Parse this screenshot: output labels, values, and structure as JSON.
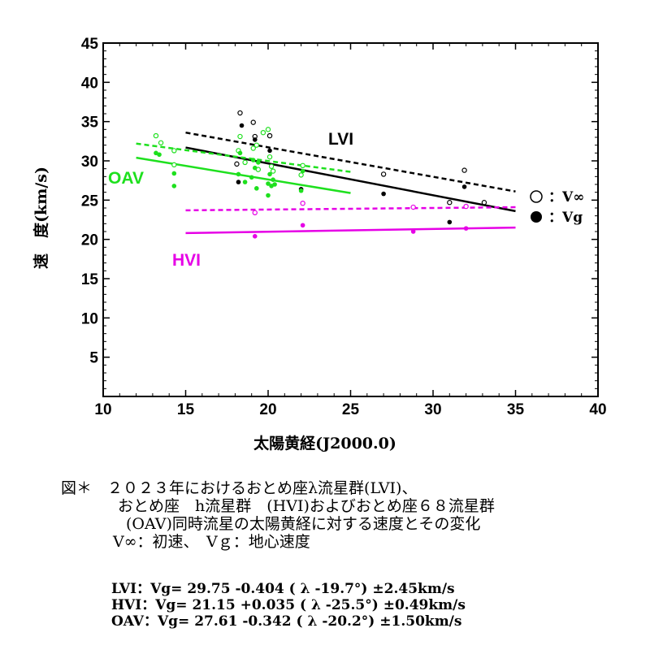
{
  "chart_data": {
    "type": "scatter",
    "xlabel": "太陽黄経(J2000.0)",
    "ylabel": "速　度(km/s)",
    "xlim": [
      10,
      40
    ],
    "ylim": [
      0,
      45
    ],
    "xticks": [
      10,
      15,
      20,
      25,
      30,
      35,
      40
    ],
    "yticks": [
      5,
      10,
      15,
      20,
      25,
      30,
      35,
      40,
      45
    ],
    "grid": false,
    "colors": {
      "LVI": "#000000",
      "HVI": "#e600e6",
      "OAV": "#1ee01e"
    },
    "series_labels": {
      "LVI": "LVI",
      "HVI": "HVI",
      "OAV": "OAV"
    },
    "series": [
      {
        "name": "LVI",
        "kind": "V∞ (open)",
        "color": "#000000",
        "points": [
          [
            18.3,
            36.1
          ],
          [
            19.1,
            34.9
          ],
          [
            19.2,
            33.1
          ],
          [
            20.1,
            33.2
          ],
          [
            18.1,
            29.6
          ],
          [
            27.0,
            28.3
          ],
          [
            31.9,
            28.8
          ],
          [
            31.0,
            24.7
          ],
          [
            33.1,
            24.7
          ]
        ]
      },
      {
        "name": "LVI",
        "kind": "Vg (filled)",
        "color": "#000000",
        "points": [
          [
            18.4,
            34.5
          ],
          [
            19.2,
            32.7
          ],
          [
            20.1,
            31.3
          ],
          [
            18.2,
            27.3
          ],
          [
            22.0,
            26.4
          ],
          [
            27.0,
            25.8
          ],
          [
            31.0,
            22.2
          ],
          [
            31.9,
            26.7
          ]
        ]
      },
      {
        "name": "HVI",
        "kind": "V∞ (open)",
        "color": "#e600e6",
        "points": [
          [
            19.2,
            23.4
          ],
          [
            22.1,
            24.6
          ],
          [
            28.8,
            24.1
          ],
          [
            32.0,
            24.2
          ]
        ]
      },
      {
        "name": "HVI",
        "kind": "Vg (filled)",
        "color": "#e600e6",
        "points": [
          [
            19.2,
            20.4
          ],
          [
            22.1,
            21.8
          ],
          [
            28.8,
            21.0
          ],
          [
            32.0,
            21.4
          ]
        ]
      },
      {
        "name": "OAV",
        "kind": "V∞ (open)",
        "color": "#1ee01e",
        "points": [
          [
            13.2,
            33.2
          ],
          [
            13.5,
            32.3
          ],
          [
            14.3,
            31.3
          ],
          [
            14.3,
            29.5
          ],
          [
            18.2,
            31.3
          ],
          [
            18.3,
            33.1
          ],
          [
            18.6,
            29.8
          ],
          [
            19.1,
            31.6
          ],
          [
            19.3,
            32.0
          ],
          [
            19.4,
            28.9
          ],
          [
            19.7,
            33.6
          ],
          [
            20.0,
            34.0
          ],
          [
            20.1,
            30.5
          ],
          [
            20.2,
            29.3
          ],
          [
            20.3,
            28.7
          ],
          [
            22.0,
            28.2
          ],
          [
            22.1,
            29.4
          ]
        ]
      },
      {
        "name": "OAV",
        "kind": "Vg (filled)",
        "color": "#1ee01e",
        "points": [
          [
            13.2,
            31.0
          ],
          [
            13.4,
            30.8
          ],
          [
            14.3,
            28.4
          ],
          [
            14.3,
            26.8
          ],
          [
            18.2,
            28.3
          ],
          [
            18.3,
            31.0
          ],
          [
            18.6,
            27.3
          ],
          [
            19.0,
            27.9
          ],
          [
            19.1,
            30.1
          ],
          [
            19.2,
            29.1
          ],
          [
            19.3,
            26.5
          ],
          [
            19.4,
            29.8
          ],
          [
            20.0,
            25.6
          ],
          [
            20.0,
            27.1
          ],
          [
            20.1,
            28.3
          ],
          [
            20.2,
            26.8
          ],
          [
            20.3,
            27.6
          ],
          [
            20.4,
            27.0
          ],
          [
            22.0,
            26.2
          ],
          [
            22.1,
            28.7
          ]
        ]
      }
    ],
    "fits": [
      {
        "name": "LVI",
        "color": "#000000",
        "style": "dashed",
        "x": [
          15,
          35
        ],
        "y": [
          33.6,
          26.1
        ]
      },
      {
        "name": "LVI",
        "color": "#000000",
        "style": "solid",
        "x": [
          15,
          35
        ],
        "y": [
          31.7,
          23.6
        ]
      },
      {
        "name": "HVI",
        "color": "#e600e6",
        "style": "dashed",
        "x": [
          15,
          35
        ],
        "y": [
          23.7,
          24.1
        ]
      },
      {
        "name": "HVI",
        "color": "#e600e6",
        "style": "solid",
        "x": [
          15,
          35
        ],
        "y": [
          20.8,
          21.5
        ]
      },
      {
        "name": "OAV",
        "color": "#1ee01e",
        "style": "dashed",
        "x": [
          12,
          25
        ],
        "y": [
          32.2,
          28.6
        ]
      },
      {
        "name": "OAV",
        "color": "#1ee01e",
        "style": "solid",
        "x": [
          12,
          25
        ],
        "y": [
          30.4,
          25.9
        ]
      }
    ],
    "legend": [
      {
        "marker": "open",
        "label": "：V∞"
      },
      {
        "marker": "filled",
        "label": "：Vg"
      }
    ],
    "legend_position": "right-middle"
  },
  "caption": {
    "line1": "図＊　２０２３年におけるおとめ座λ流星群(LVI)、",
    "line2": "おとめ座　h流星群　(HVI)およびおとめ座６８流星群",
    "line3": "(OAV)同時流星の太陽黄経に対する速度とその変化",
    "line4": "V∞：初速、　Vｇ：地心速度"
  },
  "formulas": [
    "LVI：Vg= 29.75 -0.404 ( λ -19.7°) ±2.45km/s",
    "HVI：Vg= 21.15 +0.035 ( λ -25.5°) ±0.49km/s",
    "OAV：Vg= 27.61 -0.342 ( λ -20.2°) ±1.50km/s"
  ]
}
